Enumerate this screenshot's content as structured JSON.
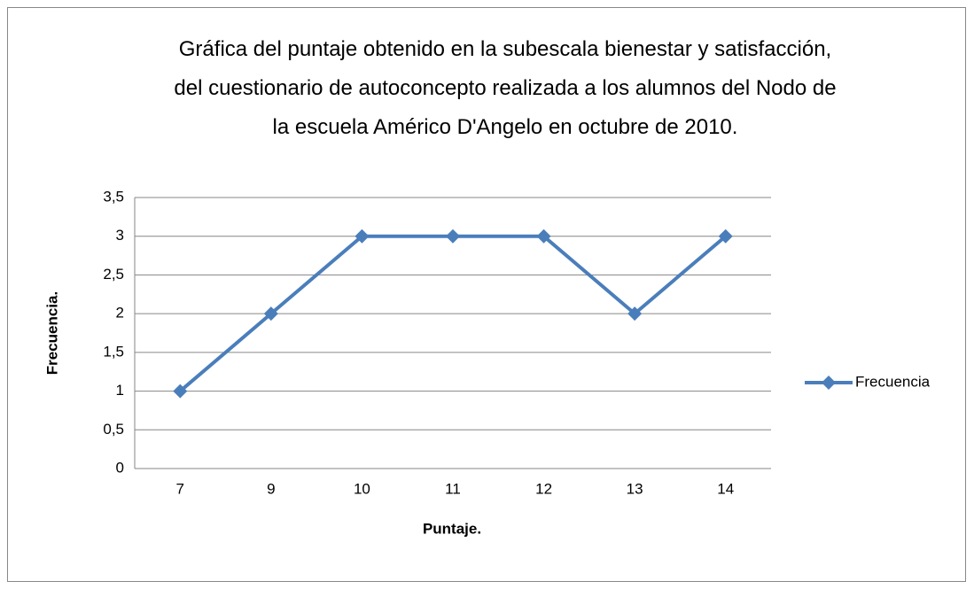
{
  "chart_data": {
    "type": "line",
    "title": "Gráfica del puntaje obtenido en la subescala bienestar y satisfacción, del cuestionario de autoconcepto realizada a los alumnos del Nodo de la escuela Américo D'Angelo en octubre de 2010.",
    "x_label": "Puntaje.",
    "y_label": "Frecuencia.",
    "categories": [
      "7",
      "9",
      "10",
      "11",
      "12",
      "13",
      "14"
    ],
    "series": [
      {
        "name": "Frecuencia",
        "color": "#4a7ebb",
        "values": [
          1,
          2,
          3,
          3,
          3,
          2,
          3
        ]
      }
    ],
    "ylim": [
      0,
      3.5
    ],
    "yticks": [
      0,
      {
        "value": 0.5,
        "label": "0,5"
      },
      1,
      {
        "value": 1.5,
        "label": "1,5"
      },
      2,
      {
        "value": 2.5,
        "label": "2,5"
      },
      3,
      {
        "value": 3.5,
        "label": "3,5"
      }
    ],
    "grid": true,
    "legend": "right"
  }
}
